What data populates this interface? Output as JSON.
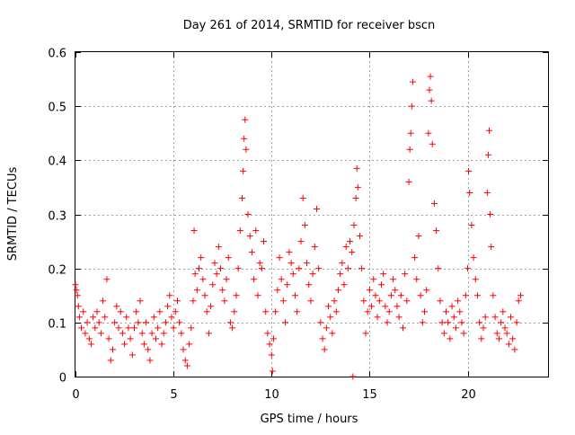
{
  "chart_data": {
    "type": "scatter",
    "title": "Day 261 of 2014, SRMTID for receiver bscn",
    "xlabel": "GPS time / hours",
    "ylabel": "SRMTID / TECUs",
    "xlim": [
      0,
      24.1
    ],
    "ylim": [
      0,
      0.6
    ],
    "x_ticks": [
      0,
      5,
      10,
      15,
      20
    ],
    "y_ticks": [
      0,
      0.1,
      0.2,
      0.3,
      0.4,
      0.5,
      0.6
    ],
    "x_tick_labels": [
      "0",
      "5",
      "10",
      "15",
      "20"
    ],
    "y_tick_labels": [
      "0",
      "0.1",
      "0.2",
      "0.3",
      "0.4",
      "0.5",
      "0.6"
    ],
    "grid": true,
    "marker": "+",
    "marker_color": "#ff0000",
    "series": [
      {
        "name": "SRMTID",
        "points": [
          [
            0.0,
            0.17
          ],
          [
            0.05,
            0.16
          ],
          [
            0.1,
            0.15
          ],
          [
            0.15,
            0.13
          ],
          [
            0.2,
            0.11
          ],
          [
            0.3,
            0.09
          ],
          [
            0.4,
            0.12
          ],
          [
            0.5,
            0.08
          ],
          [
            0.6,
            0.1
          ],
          [
            0.7,
            0.07
          ],
          [
            0.8,
            0.06
          ],
          [
            0.9,
            0.11
          ],
          [
            1.0,
            0.09
          ],
          [
            1.1,
            0.12
          ],
          [
            1.2,
            0.1
          ],
          [
            1.3,
            0.08
          ],
          [
            1.4,
            0.14
          ],
          [
            1.5,
            0.11
          ],
          [
            1.6,
            0.18
          ],
          [
            1.7,
            0.07
          ],
          [
            1.8,
            0.03
          ],
          [
            1.9,
            0.05
          ],
          [
            2.0,
            0.1
          ],
          [
            2.1,
            0.13
          ],
          [
            2.2,
            0.09
          ],
          [
            2.3,
            0.12
          ],
          [
            2.4,
            0.08
          ],
          [
            2.5,
            0.06
          ],
          [
            2.6,
            0.11
          ],
          [
            2.7,
            0.09
          ],
          [
            2.8,
            0.07
          ],
          [
            2.9,
            0.04
          ],
          [
            3.0,
            0.09
          ],
          [
            3.1,
            0.12
          ],
          [
            3.2,
            0.1
          ],
          [
            3.3,
            0.14
          ],
          [
            3.4,
            0.08
          ],
          [
            3.5,
            0.06
          ],
          [
            3.6,
            0.1
          ],
          [
            3.7,
            0.05
          ],
          [
            3.8,
            0.03
          ],
          [
            3.9,
            0.08
          ],
          [
            4.0,
            0.11
          ],
          [
            4.1,
            0.07
          ],
          [
            4.2,
            0.09
          ],
          [
            4.3,
            0.12
          ],
          [
            4.4,
            0.06
          ],
          [
            4.5,
            0.08
          ],
          [
            4.6,
            0.1
          ],
          [
            4.7,
            0.13
          ],
          [
            4.8,
            0.15
          ],
          [
            4.9,
            0.11
          ],
          [
            5.0,
            0.09
          ],
          [
            5.1,
            0.12
          ],
          [
            5.2,
            0.14
          ],
          [
            5.3,
            0.1
          ],
          [
            5.4,
            0.08
          ],
          [
            5.5,
            0.05
          ],
          [
            5.6,
            0.03
          ],
          [
            5.7,
            0.02
          ],
          [
            5.8,
            0.06
          ],
          [
            5.9,
            0.09
          ],
          [
            6.0,
            0.14
          ],
          [
            6.05,
            0.27
          ],
          [
            6.1,
            0.19
          ],
          [
            6.2,
            0.16
          ],
          [
            6.3,
            0.2
          ],
          [
            6.4,
            0.22
          ],
          [
            6.5,
            0.18
          ],
          [
            6.6,
            0.15
          ],
          [
            6.7,
            0.12
          ],
          [
            6.8,
            0.08
          ],
          [
            6.9,
            0.13
          ],
          [
            7.0,
            0.17
          ],
          [
            7.1,
            0.21
          ],
          [
            7.2,
            0.19
          ],
          [
            7.3,
            0.24
          ],
          [
            7.4,
            0.2
          ],
          [
            7.5,
            0.16
          ],
          [
            7.6,
            0.14
          ],
          [
            7.7,
            0.18
          ],
          [
            7.8,
            0.22
          ],
          [
            7.9,
            0.1
          ],
          [
            8.0,
            0.09
          ],
          [
            8.1,
            0.12
          ],
          [
            8.2,
            0.15
          ],
          [
            8.3,
            0.2
          ],
          [
            8.4,
            0.27
          ],
          [
            8.5,
            0.33
          ],
          [
            8.55,
            0.38
          ],
          [
            8.6,
            0.44
          ],
          [
            8.65,
            0.475
          ],
          [
            8.7,
            0.42
          ],
          [
            8.8,
            0.3
          ],
          [
            8.9,
            0.26
          ],
          [
            9.0,
            0.23
          ],
          [
            9.1,
            0.18
          ],
          [
            9.2,
            0.27
          ],
          [
            9.3,
            0.15
          ],
          [
            9.4,
            0.21
          ],
          [
            9.5,
            0.2
          ],
          [
            9.6,
            0.25
          ],
          [
            9.7,
            0.12
          ],
          [
            9.8,
            0.08
          ],
          [
            9.9,
            0.06
          ],
          [
            10.0,
            0.04
          ],
          [
            10.05,
            0.01
          ],
          [
            10.1,
            0.07
          ],
          [
            10.2,
            0.12
          ],
          [
            10.3,
            0.16
          ],
          [
            10.4,
            0.22
          ],
          [
            10.5,
            0.18
          ],
          [
            10.6,
            0.14
          ],
          [
            10.7,
            0.1
          ],
          [
            10.8,
            0.17
          ],
          [
            10.9,
            0.23
          ],
          [
            11.0,
            0.21
          ],
          [
            11.1,
            0.19
          ],
          [
            11.2,
            0.15
          ],
          [
            11.3,
            0.12
          ],
          [
            11.4,
            0.2
          ],
          [
            11.5,
            0.25
          ],
          [
            11.6,
            0.33
          ],
          [
            11.7,
            0.28
          ],
          [
            11.8,
            0.21
          ],
          [
            11.9,
            0.17
          ],
          [
            12.0,
            0.14
          ],
          [
            12.1,
            0.19
          ],
          [
            12.2,
            0.24
          ],
          [
            12.3,
            0.31
          ],
          [
            12.4,
            0.2
          ],
          [
            12.5,
            0.1
          ],
          [
            12.6,
            0.07
          ],
          [
            12.7,
            0.05
          ],
          [
            12.8,
            0.09
          ],
          [
            12.9,
            0.13
          ],
          [
            13.0,
            0.11
          ],
          [
            13.1,
            0.08
          ],
          [
            13.2,
            0.14
          ],
          [
            13.3,
            0.12
          ],
          [
            13.4,
            0.16
          ],
          [
            13.5,
            0.19
          ],
          [
            13.6,
            0.21
          ],
          [
            13.7,
            0.17
          ],
          [
            13.8,
            0.24
          ],
          [
            13.9,
            0.2
          ],
          [
            14.0,
            0.25
          ],
          [
            14.1,
            0.23
          ],
          [
            14.15,
            0.0
          ],
          [
            14.2,
            0.28
          ],
          [
            14.3,
            0.33
          ],
          [
            14.35,
            0.385
          ],
          [
            14.4,
            0.35
          ],
          [
            14.5,
            0.26
          ],
          [
            14.6,
            0.2
          ],
          [
            14.7,
            0.14
          ],
          [
            14.8,
            0.08
          ],
          [
            14.9,
            0.12
          ],
          [
            15.0,
            0.16
          ],
          [
            15.1,
            0.13
          ],
          [
            15.2,
            0.18
          ],
          [
            15.3,
            0.15
          ],
          [
            15.4,
            0.11
          ],
          [
            15.5,
            0.14
          ],
          [
            15.6,
            0.17
          ],
          [
            15.7,
            0.19
          ],
          [
            15.8,
            0.13
          ],
          [
            15.9,
            0.1
          ],
          [
            16.0,
            0.12
          ],
          [
            16.1,
            0.15
          ],
          [
            16.2,
            0.18
          ],
          [
            16.3,
            0.16
          ],
          [
            16.4,
            0.13
          ],
          [
            16.5,
            0.11
          ],
          [
            16.6,
            0.15
          ],
          [
            16.7,
            0.09
          ],
          [
            16.8,
            0.19
          ],
          [
            16.9,
            0.14
          ],
          [
            17.0,
            0.36
          ],
          [
            17.05,
            0.42
          ],
          [
            17.1,
            0.45
          ],
          [
            17.15,
            0.5
          ],
          [
            17.2,
            0.545
          ],
          [
            17.3,
            0.22
          ],
          [
            17.4,
            0.18
          ],
          [
            17.5,
            0.26
          ],
          [
            17.6,
            0.15
          ],
          [
            17.7,
            0.1
          ],
          [
            17.8,
            0.12
          ],
          [
            17.9,
            0.16
          ],
          [
            18.0,
            0.45
          ],
          [
            18.05,
            0.53
          ],
          [
            18.1,
            0.555
          ],
          [
            18.15,
            0.51
          ],
          [
            18.2,
            0.43
          ],
          [
            18.3,
            0.32
          ],
          [
            18.4,
            0.27
          ],
          [
            18.5,
            0.2
          ],
          [
            18.6,
            0.14
          ],
          [
            18.7,
            0.1
          ],
          [
            18.8,
            0.08
          ],
          [
            18.9,
            0.12
          ],
          [
            19.0,
            0.1
          ],
          [
            19.1,
            0.07
          ],
          [
            19.2,
            0.13
          ],
          [
            19.3,
            0.11
          ],
          [
            19.4,
            0.09
          ],
          [
            19.5,
            0.14
          ],
          [
            19.6,
            0.12
          ],
          [
            19.7,
            0.1
          ],
          [
            19.8,
            0.08
          ],
          [
            19.9,
            0.15
          ],
          [
            20.0,
            0.2
          ],
          [
            20.05,
            0.38
          ],
          [
            20.1,
            0.34
          ],
          [
            20.2,
            0.28
          ],
          [
            20.3,
            0.22
          ],
          [
            20.4,
            0.18
          ],
          [
            20.5,
            0.15
          ],
          [
            20.6,
            0.1
          ],
          [
            20.7,
            0.07
          ],
          [
            20.8,
            0.09
          ],
          [
            20.9,
            0.11
          ],
          [
            21.0,
            0.34
          ],
          [
            21.05,
            0.41
          ],
          [
            21.1,
            0.455
          ],
          [
            21.15,
            0.3
          ],
          [
            21.2,
            0.24
          ],
          [
            21.3,
            0.15
          ],
          [
            21.4,
            0.11
          ],
          [
            21.5,
            0.08
          ],
          [
            21.6,
            0.07
          ],
          [
            21.7,
            0.1
          ],
          [
            21.8,
            0.12
          ],
          [
            21.9,
            0.09
          ],
          [
            22.0,
            0.08
          ],
          [
            22.1,
            0.06
          ],
          [
            22.2,
            0.11
          ],
          [
            22.3,
            0.07
          ],
          [
            22.4,
            0.05
          ],
          [
            22.5,
            0.1
          ],
          [
            22.6,
            0.14
          ],
          [
            22.7,
            0.15
          ]
        ]
      }
    ]
  }
}
